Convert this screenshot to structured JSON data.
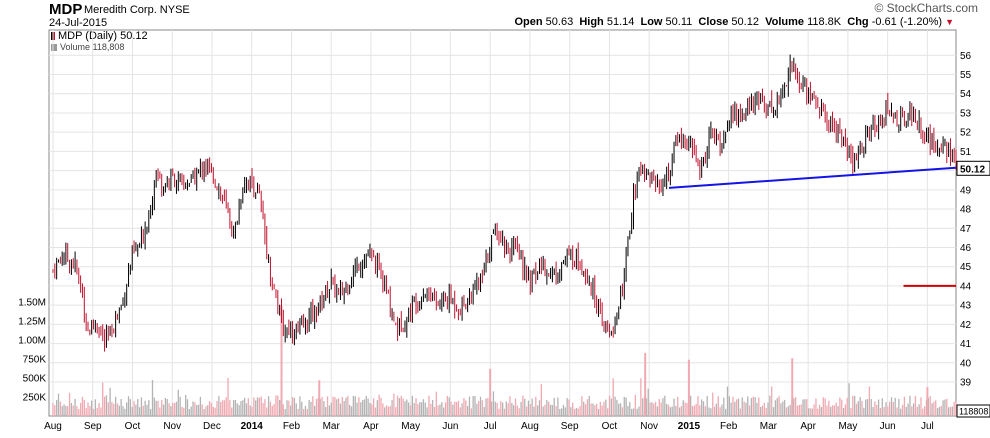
{
  "header": {
    "symbol": "MDP",
    "company": "Meredith Corp. NYSE",
    "date": "24-Jul-2015",
    "brand": "© StockCharts.com",
    "open_label": "Open",
    "open": "50.63",
    "high_label": "High",
    "high": "51.14",
    "low_label": "Low",
    "low": "50.11",
    "close_label": "Close",
    "close": "50.12",
    "volume_label": "Volume",
    "volume": "118.8K",
    "chg_label": "Chg",
    "chg": "-0.61 (-1.20%)",
    "chg_arrow": "▼"
  },
  "legend": {
    "price": "MDP (Daily) 50.12",
    "volume": "Volume 118,808"
  },
  "colors": {
    "up": "#000000",
    "down": "#c0102c",
    "trendline": "#1414e6",
    "hline": "#d40000",
    "vol_up": "#b3b3b3",
    "vol_down": "#f0a9b1",
    "grid": "#e4e4e4"
  },
  "chart_data": {
    "type": "candlestick",
    "price_ylim": [
      39,
      56.9
    ],
    "price_ticks": [
      39,
      40,
      41,
      42,
      43,
      44,
      45,
      46,
      47,
      48,
      49,
      50,
      51,
      52,
      53,
      54,
      55,
      56
    ],
    "volume_ticks": [
      {
        "value": 250000,
        "label": "250K"
      },
      {
        "value": 500000,
        "label": "500K"
      },
      {
        "value": 750000,
        "label": "750K"
      },
      {
        "value": 1000000,
        "label": "1.00M"
      },
      {
        "value": 1250000,
        "label": "1.25M"
      },
      {
        "value": 1500000,
        "label": "1.50M"
      }
    ],
    "volume_last_label": "118808",
    "x_labels": [
      {
        "label": "Aug",
        "bold": false
      },
      {
        "label": "Sep",
        "bold": false
      },
      {
        "label": "Oct",
        "bold": false
      },
      {
        "label": "Nov",
        "bold": false
      },
      {
        "label": "Dec",
        "bold": false
      },
      {
        "label": "2014",
        "bold": true
      },
      {
        "label": "Feb",
        "bold": false
      },
      {
        "label": "Mar",
        "bold": false
      },
      {
        "label": "Apr",
        "bold": false
      },
      {
        "label": "May",
        "bold": false
      },
      {
        "label": "Jun",
        "bold": false
      },
      {
        "label": "Jul",
        "bold": false
      },
      {
        "label": "Aug",
        "bold": false
      },
      {
        "label": "Sep",
        "bold": false
      },
      {
        "label": "Oct",
        "bold": false
      },
      {
        "label": "Nov",
        "bold": false
      },
      {
        "label": "2015",
        "bold": true
      },
      {
        "label": "Feb",
        "bold": false
      },
      {
        "label": "Mar",
        "bold": false
      },
      {
        "label": "Apr",
        "bold": false
      },
      {
        "label": "May",
        "bold": false
      },
      {
        "label": "Jun",
        "bold": false
      },
      {
        "label": "Jul",
        "bold": false
      }
    ],
    "last_price_label": "50.12",
    "close_series": [
      {
        "t": 0,
        "v": 44.8
      },
      {
        "t": 0.25,
        "v": 45.6
      },
      {
        "t": 0.55,
        "v": 45.1
      },
      {
        "t": 0.75,
        "v": 43.6
      },
      {
        "t": 0.85,
        "v": 41.6
      },
      {
        "t": 1.1,
        "v": 42.2
      },
      {
        "t": 1.3,
        "v": 41.0
      },
      {
        "t": 1.5,
        "v": 41.8
      },
      {
        "t": 1.75,
        "v": 43.2
      },
      {
        "t": 2.0,
        "v": 45.6
      },
      {
        "t": 2.2,
        "v": 46.1
      },
      {
        "t": 2.4,
        "v": 47.7
      },
      {
        "t": 2.6,
        "v": 50.0
      },
      {
        "t": 2.75,
        "v": 49.2
      },
      {
        "t": 3.0,
        "v": 49.6
      },
      {
        "t": 3.3,
        "v": 49.2
      },
      {
        "t": 3.55,
        "v": 49.6
      },
      {
        "t": 3.8,
        "v": 50.3
      },
      {
        "t": 4.05,
        "v": 49.7
      },
      {
        "t": 4.3,
        "v": 48.4
      },
      {
        "t": 4.55,
        "v": 46.6
      },
      {
        "t": 4.8,
        "v": 49.5
      },
      {
        "t": 5.0,
        "v": 49.4
      },
      {
        "t": 5.2,
        "v": 48.6
      },
      {
        "t": 5.45,
        "v": 44.8
      },
      {
        "t": 5.65,
        "v": 43.0
      },
      {
        "t": 5.8,
        "v": 41.7
      },
      {
        "t": 6.0,
        "v": 41.8
      },
      {
        "t": 6.2,
        "v": 41.6
      },
      {
        "t": 6.45,
        "v": 42.3
      },
      {
        "t": 6.7,
        "v": 43.0
      },
      {
        "t": 7.0,
        "v": 44.2
      },
      {
        "t": 7.2,
        "v": 43.4
      },
      {
        "t": 7.45,
        "v": 44.3
      },
      {
        "t": 7.7,
        "v": 45.2
      },
      {
        "t": 7.95,
        "v": 45.6
      },
      {
        "t": 8.2,
        "v": 44.9
      },
      {
        "t": 8.45,
        "v": 43.2
      },
      {
        "t": 8.65,
        "v": 41.8
      },
      {
        "t": 8.9,
        "v": 42.3
      },
      {
        "t": 9.15,
        "v": 43.4
      },
      {
        "t": 9.4,
        "v": 43.8
      },
      {
        "t": 9.7,
        "v": 43.0
      },
      {
        "t": 9.95,
        "v": 43.4
      },
      {
        "t": 10.25,
        "v": 42.8
      },
      {
        "t": 10.55,
        "v": 43.6
      },
      {
        "t": 10.8,
        "v": 44.4
      },
      {
        "t": 11.0,
        "v": 46.2
      },
      {
        "t": 11.2,
        "v": 47.0
      },
      {
        "t": 11.4,
        "v": 46.0
      },
      {
        "t": 11.7,
        "v": 45.7
      },
      {
        "t": 12.0,
        "v": 44.2
      },
      {
        "t": 12.3,
        "v": 45.1
      },
      {
        "t": 12.6,
        "v": 44.5
      },
      {
        "t": 12.85,
        "v": 45.3
      },
      {
        "t": 13.1,
        "v": 45.6
      },
      {
        "t": 13.35,
        "v": 45.0
      },
      {
        "t": 13.6,
        "v": 43.8
      },
      {
        "t": 13.8,
        "v": 42.0
      },
      {
        "t": 14.0,
        "v": 41.6
      },
      {
        "t": 14.2,
        "v": 42.2
      },
      {
        "t": 14.4,
        "v": 45.0
      },
      {
        "t": 14.6,
        "v": 48.5
      },
      {
        "t": 14.8,
        "v": 50.3
      },
      {
        "t": 15.0,
        "v": 49.8
      },
      {
        "t": 15.25,
        "v": 49.2
      },
      {
        "t": 15.5,
        "v": 49.8
      },
      {
        "t": 15.7,
        "v": 51.8
      },
      {
        "t": 15.95,
        "v": 51.4
      },
      {
        "t": 16.15,
        "v": 51.0
      },
      {
        "t": 16.3,
        "v": 49.9
      },
      {
        "t": 16.55,
        "v": 52.0
      },
      {
        "t": 16.8,
        "v": 51.2
      },
      {
        "t": 17.05,
        "v": 53.0
      },
      {
        "t": 17.3,
        "v": 52.8
      },
      {
        "t": 17.6,
        "v": 53.4
      },
      {
        "t": 17.85,
        "v": 53.7
      },
      {
        "t": 18.1,
        "v": 53.2
      },
      {
        "t": 18.35,
        "v": 54.0
      },
      {
        "t": 18.55,
        "v": 55.6
      },
      {
        "t": 18.75,
        "v": 54.6
      },
      {
        "t": 19.0,
        "v": 54.1
      },
      {
        "t": 19.25,
        "v": 53.4
      },
      {
        "t": 19.5,
        "v": 52.5
      },
      {
        "t": 19.8,
        "v": 52.0
      },
      {
        "t": 20.0,
        "v": 50.8
      },
      {
        "t": 20.15,
        "v": 50.2
      },
      {
        "t": 20.4,
        "v": 51.6
      },
      {
        "t": 20.7,
        "v": 52.4
      },
      {
        "t": 21.0,
        "v": 53.2
      },
      {
        "t": 21.3,
        "v": 52.6
      },
      {
        "t": 21.6,
        "v": 53.0
      },
      {
        "t": 21.9,
        "v": 52.0
      },
      {
        "t": 22.15,
        "v": 51.2
      },
      {
        "t": 22.4,
        "v": 51.6
      },
      {
        "t": 22.6,
        "v": 50.7
      },
      {
        "t": 22.72,
        "v": 50.12
      }
    ],
    "trendline": [
      {
        "t": 15.5,
        "v": 49.1
      },
      {
        "t": 22.72,
        "v": 50.15
      }
    ],
    "resistance_line": {
      "t_start": 21.4,
      "t_end": 22.72,
      "v": 44.0
    }
  }
}
